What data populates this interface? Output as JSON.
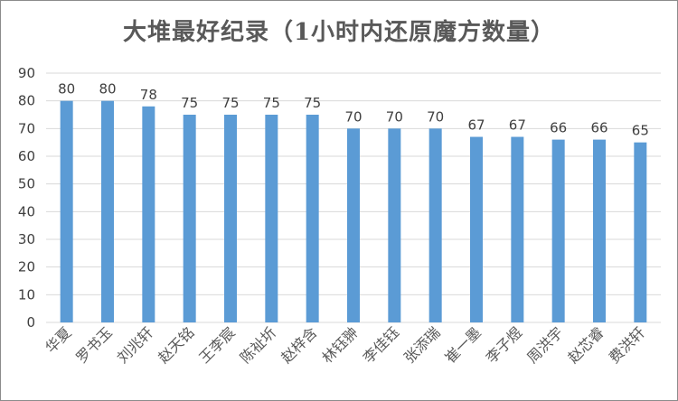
{
  "chart_data": {
    "type": "bar",
    "title": "大堆最好纪录（1小时内还原魔方数量）",
    "xlabel": "",
    "ylabel": "",
    "categories": [
      "华夏",
      "罗书玉",
      "刘兆轩",
      "赵天铭",
      "王李宸",
      "陈祉圻",
      "赵梓含",
      "林钰翀",
      "李佳钰",
      "张添瑞",
      "崔一墨",
      "李子煜",
      "周洪宇",
      "赵芯睿",
      "费洪轩"
    ],
    "values": [
      80,
      80,
      78,
      75,
      75,
      75,
      75,
      70,
      70,
      70,
      67,
      67,
      66,
      66,
      65
    ],
    "ylim": [
      0,
      90
    ],
    "yticks": [
      0,
      10,
      20,
      30,
      40,
      50,
      60,
      70,
      80,
      90
    ],
    "grid": true,
    "legend": "none",
    "bar_color": "#5b9bd5",
    "grid_color": "#d9d9d9",
    "text_color": "#595959"
  }
}
